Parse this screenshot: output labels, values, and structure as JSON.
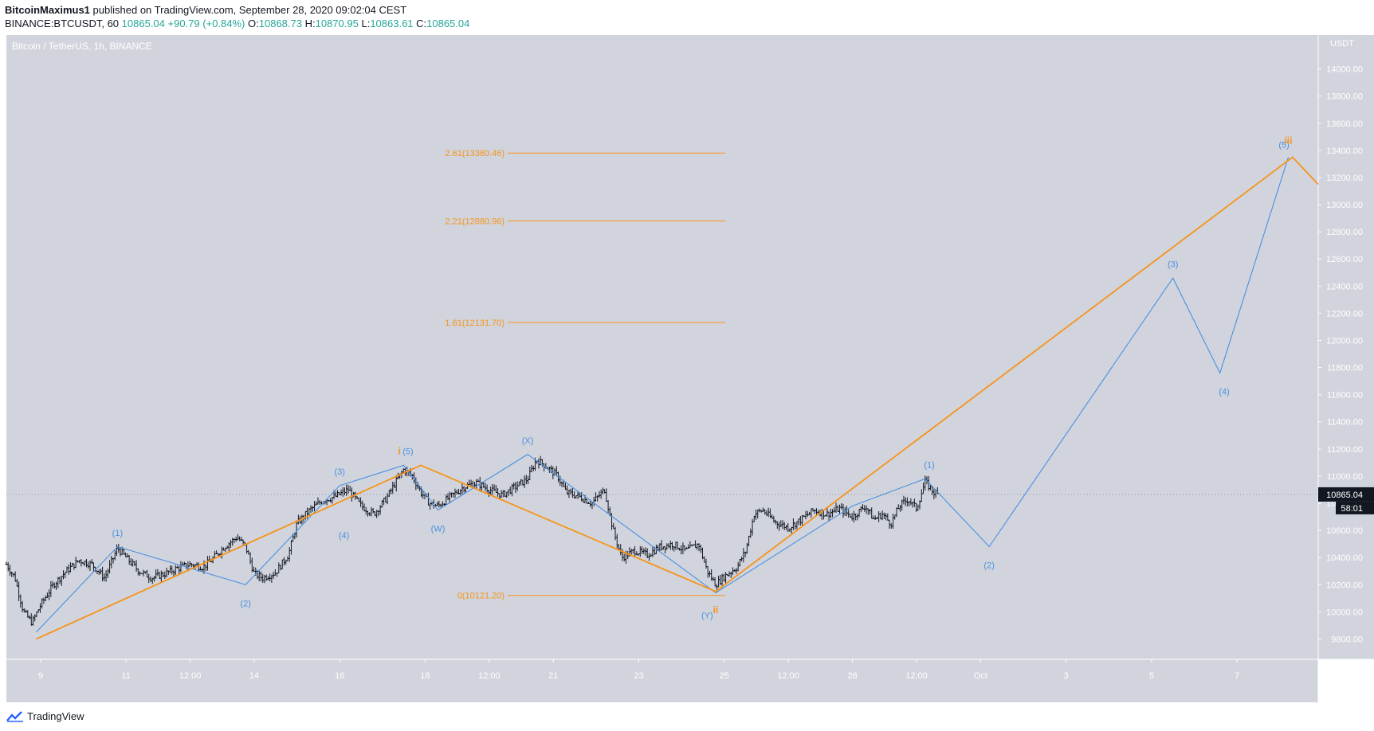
{
  "header": {
    "author": "BitcoinMaximus1",
    "published_text": "published on TradingView.com, September 28, 2020 09:02:04 CEST",
    "symbol_line": "BINANCE:BTCUSDT, 60",
    "last_price": "10865.04",
    "change": "+90.79 (+0.84%)",
    "o_label": "O:",
    "o_value": "10868.73",
    "h_label": "H:",
    "h_value": "10870.95",
    "l_label": "L:",
    "l_value": "10863.61",
    "c_label": "C:",
    "c_value": "10865.04"
  },
  "footer": {
    "brand": "TradingView"
  },
  "colors": {
    "background": "#d1d4dc",
    "orange": "#f7931a",
    "blue": "#4a90e2",
    "candle": "#131722"
  },
  "chart_data": {
    "type": "line",
    "title": "Bitcoin / TetherUS, 1h, BINANCE",
    "currency": "USDT",
    "ylim": [
      9650,
      14250
    ],
    "y_ticks": [
      9800,
      10000,
      10200,
      10400,
      10600,
      10800,
      11000,
      11200,
      11400,
      11600,
      11800,
      12000,
      12200,
      12400,
      12600,
      12800,
      13000,
      13200,
      13400,
      13600,
      13800,
      14000
    ],
    "y_tick_labels": [
      "9800.00",
      "10000.00",
      "10200.00",
      "10400.00",
      "10600.00",
      "10800.00",
      "11000.00",
      "11200.00",
      "11400.00",
      "11600.00",
      "11800.00",
      "12000.00",
      "12200.00",
      "12400.00",
      "12600.00",
      "12800.00",
      "13000.00",
      "13200.00",
      "13400.00",
      "13600.00",
      "13800.00",
      "14000.00"
    ],
    "x_unit": "days since Sep 8 00:00",
    "xlim": [
      8.2,
      38.9
    ],
    "x_ticks": [
      {
        "t": 9,
        "label": "9"
      },
      {
        "t": 11,
        "label": "11"
      },
      {
        "t": 12.5,
        "label": "12:00"
      },
      {
        "t": 14,
        "label": "14"
      },
      {
        "t": 16,
        "label": "16"
      },
      {
        "t": 18,
        "label": "18"
      },
      {
        "t": 19.5,
        "label": "12:00"
      },
      {
        "t": 21,
        "label": "21"
      },
      {
        "t": 23,
        "label": "23"
      },
      {
        "t": 25,
        "label": "25"
      },
      {
        "t": 26.5,
        "label": "12:00"
      },
      {
        "t": 28,
        "label": "28"
      },
      {
        "t": 29.5,
        "label": "12:00"
      },
      {
        "t": 31,
        "label": "Oct"
      },
      {
        "t": 33,
        "label": "3"
      },
      {
        "t": 35,
        "label": "5"
      },
      {
        "t": 37,
        "label": "7"
      }
    ],
    "price_path": [
      [
        8.2,
        10350
      ],
      [
        8.4,
        10250
      ],
      [
        8.6,
        10000
      ],
      [
        8.8,
        9920
      ],
      [
        9.0,
        10050
      ],
      [
        9.3,
        10200
      ],
      [
        9.6,
        10300
      ],
      [
        9.9,
        10380
      ],
      [
        10.2,
        10350
      ],
      [
        10.5,
        10250
      ],
      [
        10.8,
        10470
      ],
      [
        11.0,
        10400
      ],
      [
        11.3,
        10300
      ],
      [
        11.6,
        10250
      ],
      [
        11.9,
        10280
      ],
      [
        12.2,
        10320
      ],
      [
        12.5,
        10350
      ],
      [
        12.8,
        10330
      ],
      [
        13.0,
        10380
      ],
      [
        13.3,
        10480
      ],
      [
        13.6,
        10550
      ],
      [
        13.8,
        10480
      ],
      [
        14.0,
        10280
      ],
      [
        14.2,
        10250
      ],
      [
        14.5,
        10290
      ],
      [
        14.8,
        10420
      ],
      [
        15.0,
        10650
      ],
      [
        15.3,
        10750
      ],
      [
        15.6,
        10820
      ],
      [
        15.9,
        10850
      ],
      [
        16.2,
        10900
      ],
      [
        16.5,
        10780
      ],
      [
        16.8,
        10720
      ],
      [
        17.1,
        10840
      ],
      [
        17.3,
        10950
      ],
      [
        17.5,
        11050
      ],
      [
        17.7,
        11000
      ],
      [
        17.9,
        10880
      ],
      [
        18.1,
        10800
      ],
      [
        18.3,
        10780
      ],
      [
        18.6,
        10850
      ],
      [
        18.9,
        10920
      ],
      [
        19.2,
        10950
      ],
      [
        19.5,
        10900
      ],
      [
        19.8,
        10860
      ],
      [
        20.1,
        10920
      ],
      [
        20.4,
        10980
      ],
      [
        20.6,
        11120
      ],
      [
        20.8,
        11080
      ],
      [
        21.1,
        11000
      ],
      [
        21.3,
        10880
      ],
      [
        21.6,
        10850
      ],
      [
        21.9,
        10800
      ],
      [
        22.2,
        10900
      ],
      [
        22.4,
        10600
      ],
      [
        22.6,
        10400
      ],
      [
        22.9,
        10450
      ],
      [
        23.2,
        10420
      ],
      [
        23.5,
        10480
      ],
      [
        23.8,
        10500
      ],
      [
        24.1,
        10450
      ],
      [
        24.4,
        10500
      ],
      [
        24.6,
        10300
      ],
      [
        24.8,
        10200
      ],
      [
        25.0,
        10260
      ],
      [
        25.3,
        10330
      ],
      [
        25.5,
        10450
      ],
      [
        25.7,
        10720
      ],
      [
        25.9,
        10750
      ],
      [
        26.2,
        10660
      ],
      [
        26.5,
        10620
      ],
      [
        26.8,
        10680
      ],
      [
        27.1,
        10750
      ],
      [
        27.4,
        10720
      ],
      [
        27.7,
        10760
      ],
      [
        28.0,
        10700
      ],
      [
        28.3,
        10780
      ],
      [
        28.5,
        10680
      ],
      [
        28.7,
        10720
      ],
      [
        28.9,
        10650
      ],
      [
        29.1,
        10780
      ],
      [
        29.3,
        10830
      ],
      [
        29.5,
        10760
      ],
      [
        29.7,
        10960
      ],
      [
        29.9,
        10880
      ],
      [
        30.0,
        10865
      ]
    ],
    "fib_levels": [
      {
        "label": "2.61(13380.46)",
        "value": 13380.46
      },
      {
        "label": "2.21(12880.96)",
        "value": 12880.96
      },
      {
        "label": "1.61(12131.70)",
        "value": 12131.7
      },
      {
        "label": "0(10121.20)",
        "value": 10121.2
      }
    ],
    "fib_x_range": [
      19.0,
      24.0
    ],
    "orange_wave": [
      [
        8.9,
        9800
      ],
      [
        17.9,
        11080
      ],
      [
        24.8,
        10150
      ],
      [
        38.3,
        13350
      ],
      [
        38.9,
        13150
      ]
    ],
    "blue_wave": [
      [
        8.9,
        9850
      ],
      [
        10.8,
        10480
      ],
      [
        13.8,
        10200
      ],
      [
        16.0,
        10930
      ],
      [
        17.5,
        11080
      ],
      [
        18.3,
        10750
      ],
      [
        20.4,
        11160
      ],
      [
        24.8,
        10140
      ],
      [
        28.0,
        10780
      ],
      [
        29.7,
        10980
      ],
      [
        31.2,
        10480
      ],
      [
        35.5,
        12460
      ],
      [
        36.6,
        11760
      ],
      [
        38.2,
        13350
      ]
    ],
    "blue_labels": [
      {
        "text": "(1)",
        "t": 10.8,
        "v": 10560,
        "pos": "above"
      },
      {
        "text": "(2)",
        "t": 13.8,
        "v": 10100,
        "pos": "below"
      },
      {
        "text": "(3)",
        "t": 16.0,
        "v": 11010,
        "pos": "above"
      },
      {
        "text": "(4)",
        "t": 16.1,
        "v": 10600,
        "pos": "below"
      },
      {
        "text": "(5)",
        "t": 17.6,
        "v": 11160,
        "pos": "above"
      },
      {
        "text": "(W)",
        "t": 18.3,
        "v": 10650,
        "pos": "below"
      },
      {
        "text": "(X)",
        "t": 20.4,
        "v": 11240,
        "pos": "above"
      },
      {
        "text": "(Y)",
        "t": 24.6,
        "v": 10010,
        "pos": "below"
      },
      {
        "text": "(1)",
        "t": 29.8,
        "v": 11060,
        "pos": "above"
      },
      {
        "text": "(2)",
        "t": 31.2,
        "v": 10380,
        "pos": "below"
      },
      {
        "text": "(3)",
        "t": 35.5,
        "v": 12540,
        "pos": "above"
      },
      {
        "text": "(4)",
        "t": 36.7,
        "v": 11660,
        "pos": "below"
      },
      {
        "text": "(5)",
        "t": 38.1,
        "v": 13420,
        "pos": "above"
      }
    ],
    "orange_labels": [
      {
        "text": "i",
        "t": 17.4,
        "v": 11160
      },
      {
        "text": "ii",
        "t": 24.8,
        "v": 9990
      },
      {
        "text": "iii",
        "t": 38.2,
        "v": 13450
      }
    ],
    "current_price": {
      "value": 10865.04,
      "label": "10865.04",
      "countdown": "58:01"
    }
  }
}
